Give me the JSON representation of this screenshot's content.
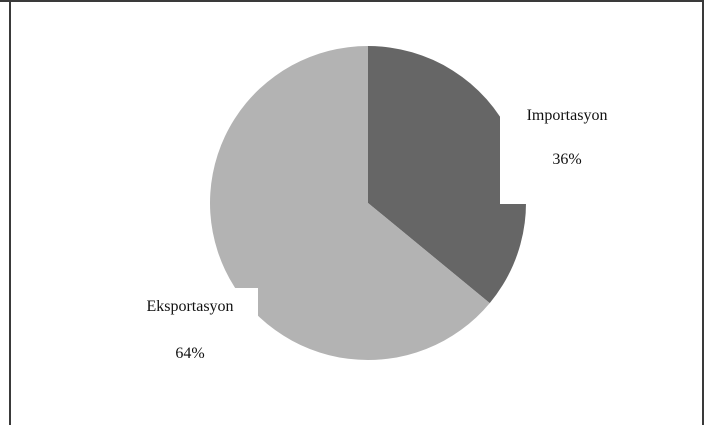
{
  "chart_data": {
    "type": "pie",
    "slices": [
      {
        "label": "Importasyon",
        "value": 36,
        "percent_label": "36%",
        "color": "#666666"
      },
      {
        "label": "Eksportasyon",
        "value": 64,
        "percent_label": "64%",
        "color": "#b3b3b3"
      }
    ],
    "start_angle_deg": 0,
    "direction": "clockwise",
    "legend": "none",
    "data_labels": "outside-with-percent"
  }
}
